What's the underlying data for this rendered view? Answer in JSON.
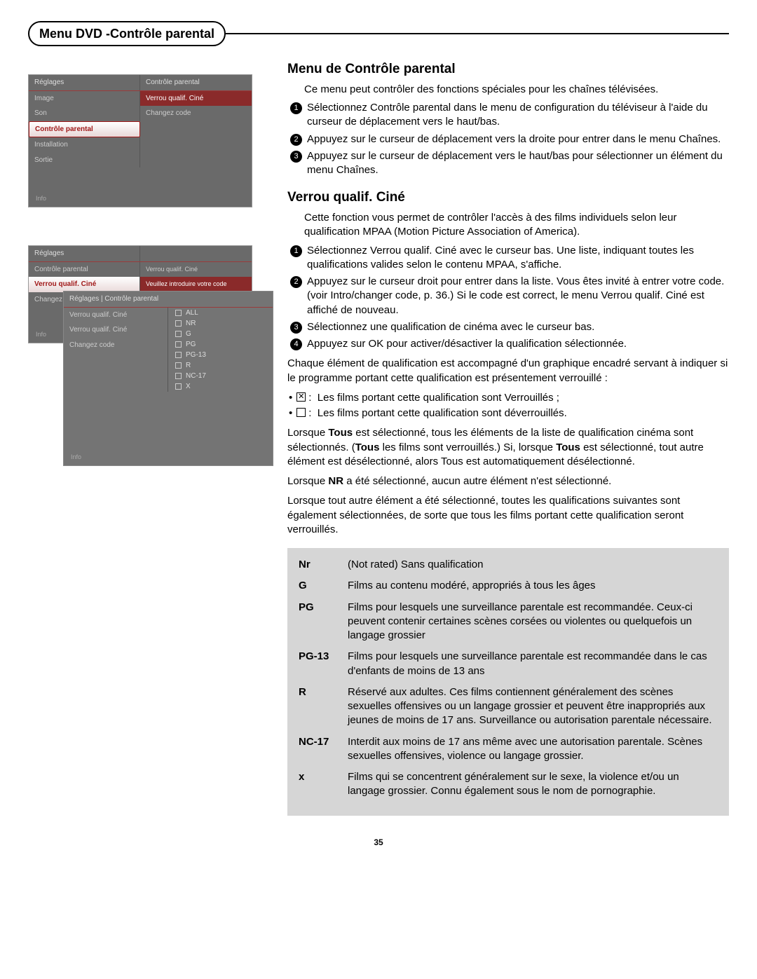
{
  "title_badge": "Menu DVD -Contrôle parental",
  "screen1": {
    "header_left": "Réglages",
    "header_right": "Contrôle parental",
    "rows": [
      {
        "left": "Image",
        "right": "Verrou qualif. Ciné",
        "hl_right": true
      },
      {
        "left": "Son",
        "right": "Changez code"
      },
      {
        "left": "Contrôle parental",
        "right": "",
        "sel": true
      },
      {
        "left": "Installation",
        "right": ""
      },
      {
        "left": "Sortie",
        "right": ""
      }
    ],
    "info": "Info"
  },
  "screen2": {
    "header_left": "Réglages",
    "rows": [
      {
        "left": "Contrôle parental",
        "right": "Verrou qualif. Ciné"
      },
      {
        "left": "Verrou qualif. Ciné",
        "right": "Veuillez introduire votre code",
        "sel": true,
        "hl_right": true
      },
      {
        "left": "Changez code",
        "right": ""
      }
    ],
    "info": "Info"
  },
  "screen3": {
    "header": "Réglages | Contrôle parental",
    "rows_left": [
      {
        "l": "Verrou qualif. Ciné"
      },
      {
        "l": "Verrou qualif. Ciné",
        "sel": true
      },
      {
        "l": "Changez code"
      }
    ],
    "ratings": [
      "ALL",
      "NR",
      "G",
      "PG",
      "PG-13",
      "R",
      "NC-17",
      "X"
    ],
    "info": "Info"
  },
  "h_main": "Menu de Contrôle parental",
  "p_main": "Ce menu peut contrôler des fonctions spéciales pour les chaînes télévisées.",
  "steps_main": [
    "Sélectionnez Contrôle parental dans le menu de configuration du téléviseur à l'aide du curseur de déplacement vers le haut/bas.",
    "Appuyez sur le curseur de déplacement vers la droite pour entrer dans le menu Chaînes.",
    "Appuyez sur le curseur de déplacement vers le haut/bas pour sélectionner un élément du menu Chaînes."
  ],
  "h_lock": "Verrou qualif. Ciné",
  "p_lock": "Cette fonction vous permet de contrôler l'accès à des films individuels selon leur qualification MPAA (Motion Picture Association of America).",
  "steps_lock": [
    "Sélectionnez Verrou qualif. Ciné avec le curseur bas. Une liste, indiquant toutes les qualifications valides selon le contenu MPAA, s'affiche.",
    "Appuyez sur le curseur droit pour entrer dans la liste. Vous êtes invité à entrer votre code. (voir Intro/changer code, p. 36.) Si le code est correct, le menu Verrou qualif. Ciné est affiché de nouveau.",
    "Sélectionnez une qualification de cinéma avec le curseur bas.",
    "Appuyez sur OK pour activer/désactiver la qualification sélectionnée."
  ],
  "p_each": "Chaque élément de qualification est accompagné d'un graphique encadré servant à indiquer si le programme portant cette qualification est présentement verrouillé :",
  "b_locked": "Les films portant cette qualification sont Verrouillés ;",
  "b_unlocked": "Les films portant cette qualification sont déverrouillés.",
  "p_tous1a": "Lorsque ",
  "p_tous1_bold1": "Tous",
  "p_tous1b": " est sélectionné, tous les éléments de la liste de qualification cinéma sont sélectionnés. (",
  "p_tous1_bold2": "Tous",
  "p_tous1c": " les films sont verrouillés.) Si, lorsque ",
  "p_tous1_bold3": "Tous",
  "p_tous1d": " est sélectionné, tout autre élément est désélectionné, alors Tous est automatiquement désélectionné.",
  "p_nr_a": "Lorsque ",
  "p_nr_bold": "NR",
  "p_nr_b": " a été sélectionné, aucun autre élément n'est sélectionné.",
  "p_follow": "Lorsque tout autre élément a été sélectionné, toutes les qualifications suivantes sont également sélectionnées, de sorte que tous les films portant cette qualification seront verrouillés.",
  "ratings": [
    {
      "label": "Nr",
      "desc": "(Not rated) Sans qualification"
    },
    {
      "label": "G",
      "desc": "Films au contenu modéré, appropriés à tous les âges"
    },
    {
      "label": "PG",
      "desc": "Films pour lesquels une surveillance parentale est recommandée. Ceux-ci peuvent contenir certaines scènes corsées ou violentes ou quelquefois un langage grossier"
    },
    {
      "label": "PG-13",
      "desc": "Films pour lesquels une surveillance parentale est recommandée dans le cas d'enfants de moins de 13 ans"
    },
    {
      "label": "R",
      "desc": "Réservé aux adultes. Ces films contiennent généralement des scènes sexuelles offensives ou un langage grossier et peuvent être inappropriés aux jeunes de moins de 17 ans. Surveillance ou autorisation parentale nécessaire."
    },
    {
      "label": "NC-17",
      "desc": "Interdit aux moins de 17 ans même avec une autorisation parentale. Scènes sexuelles offensives, violence ou langage grossier."
    },
    {
      "label": "x",
      "desc": "Films qui se concentrent généralement sur le sexe, la violence et/ou un langage grossier. Connu également sous le nom de pornographie."
    }
  ],
  "page_number": "35"
}
